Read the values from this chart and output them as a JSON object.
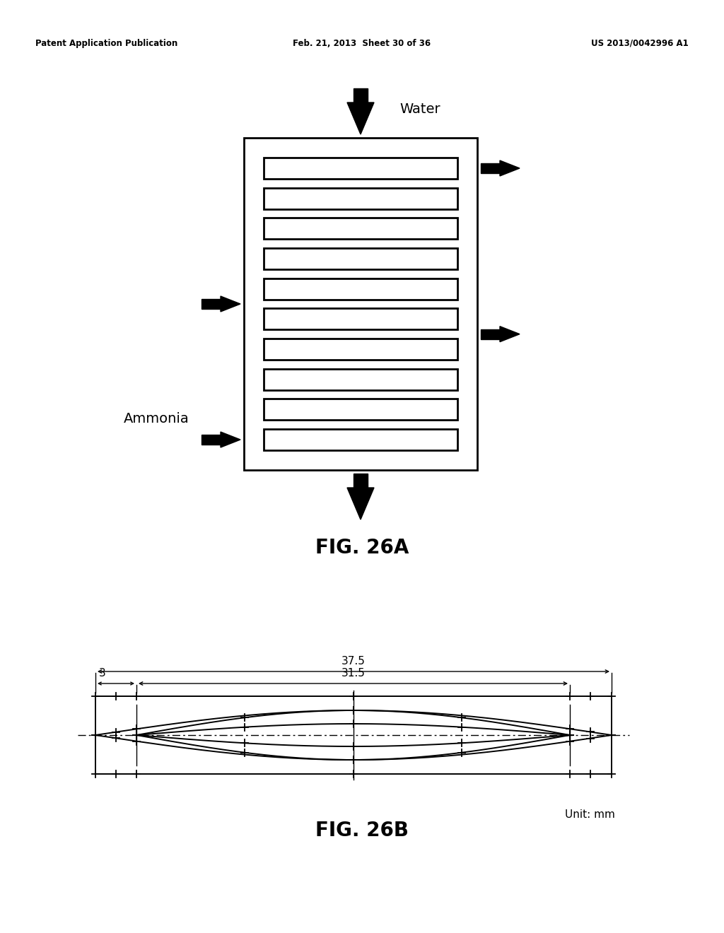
{
  "bg_color": "#ffffff",
  "header_left": "Patent Application Publication",
  "header_mid": "Feb. 21, 2013  Sheet 30 of 36",
  "header_right": "US 2013/0042996 A1",
  "fig26a_label": "FIG. 26A",
  "fig26b_label": "FIG. 26B",
  "water_label": "Water",
  "ammonia_label": "Ammonia",
  "unit_label": "Unit: mm",
  "dim_37_5": "37.5",
  "dim_31_5": "31.5",
  "dim_3": "3",
  "num_plates": 10
}
